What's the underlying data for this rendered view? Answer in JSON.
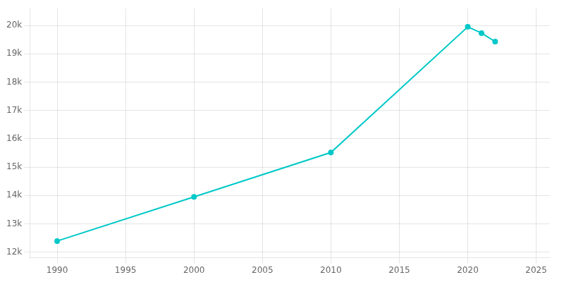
{
  "chart_data": {
    "type": "line",
    "x": [
      1990,
      2000,
      2010,
      2020,
      2021,
      2022
    ],
    "values": [
      12390,
      13950,
      15515,
      19950,
      19730,
      19430
    ],
    "color": "#00C8C8",
    "marker": "circle",
    "xlim": [
      1988,
      2026
    ],
    "ylim": [
      11800,
      20600
    ],
    "xticks": [
      1990,
      1995,
      2000,
      2005,
      2010,
      2015,
      2020,
      2025
    ],
    "yticks": [
      {
        "value": 12000,
        "label": "12k"
      },
      {
        "value": 13000,
        "label": "13k"
      },
      {
        "value": 14000,
        "label": "14k"
      },
      {
        "value": 15000,
        "label": "15k"
      },
      {
        "value": 16000,
        "label": "16k"
      },
      {
        "value": 17000,
        "label": "17k"
      },
      {
        "value": 18000,
        "label": "18k"
      },
      {
        "value": 19000,
        "label": "19k"
      },
      {
        "value": 20000,
        "label": "20k"
      }
    ],
    "grid": true
  }
}
